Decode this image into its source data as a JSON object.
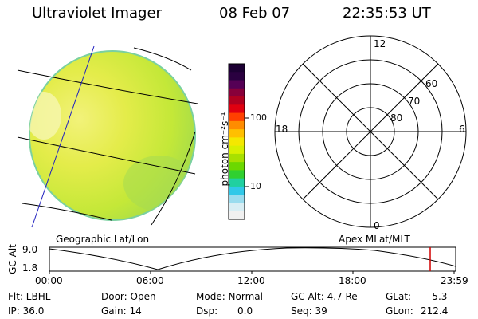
{
  "header": {
    "title": "Ultraviolet Imager",
    "date": "08 Feb 07",
    "time": "22:35:53 UT"
  },
  "colorbar": {
    "label": "photon cm⁻²s⁻¹",
    "ticks": [
      "100",
      "10"
    ],
    "colors": [
      "#1c0033",
      "#2a0040",
      "#550055",
      "#88003a",
      "#b00020",
      "#e00010",
      "#ff4000",
      "#ff8c00",
      "#ffbf00",
      "#f4e800",
      "#d8f000",
      "#a8e000",
      "#6cd800",
      "#30d030",
      "#20d0a0",
      "#30c8e8",
      "#9adcee",
      "#d8eef4",
      "#f0f0f0"
    ]
  },
  "polar": {
    "mlt_labels": {
      "top": "12",
      "bottom": "0",
      "left": "18",
      "right": "6"
    },
    "lat_labels": [
      "60",
      "70",
      "80"
    ]
  },
  "map_labels": {
    "left": "Geographic Lat/Lon",
    "right": "Apex MLat/MLT"
  },
  "altitude_plot": {
    "ylabel": "GC Alt",
    "y_ticks": [
      "9.0",
      "1.8"
    ],
    "x_ticks": [
      "00:00",
      "06:00",
      "12:00",
      "18:00",
      "23:59"
    ],
    "marker_color": "#d00000"
  },
  "info": {
    "row1": {
      "flt": "Flt: LBHL",
      "door": "Door: Open",
      "mode": "Mode: Normal",
      "gcalt": "GC Alt: 4.7 Re",
      "glat_label": "GLat:",
      "glat_value": "-5.3"
    },
    "row2": {
      "ip": "IP: 36.0",
      "gain": "Gain: 14",
      "dsp_label": "Dsp:",
      "dsp_value": "0.0",
      "seq": "Seq: 39",
      "glon_label": "GLon:",
      "glon_value": "212.4"
    }
  }
}
